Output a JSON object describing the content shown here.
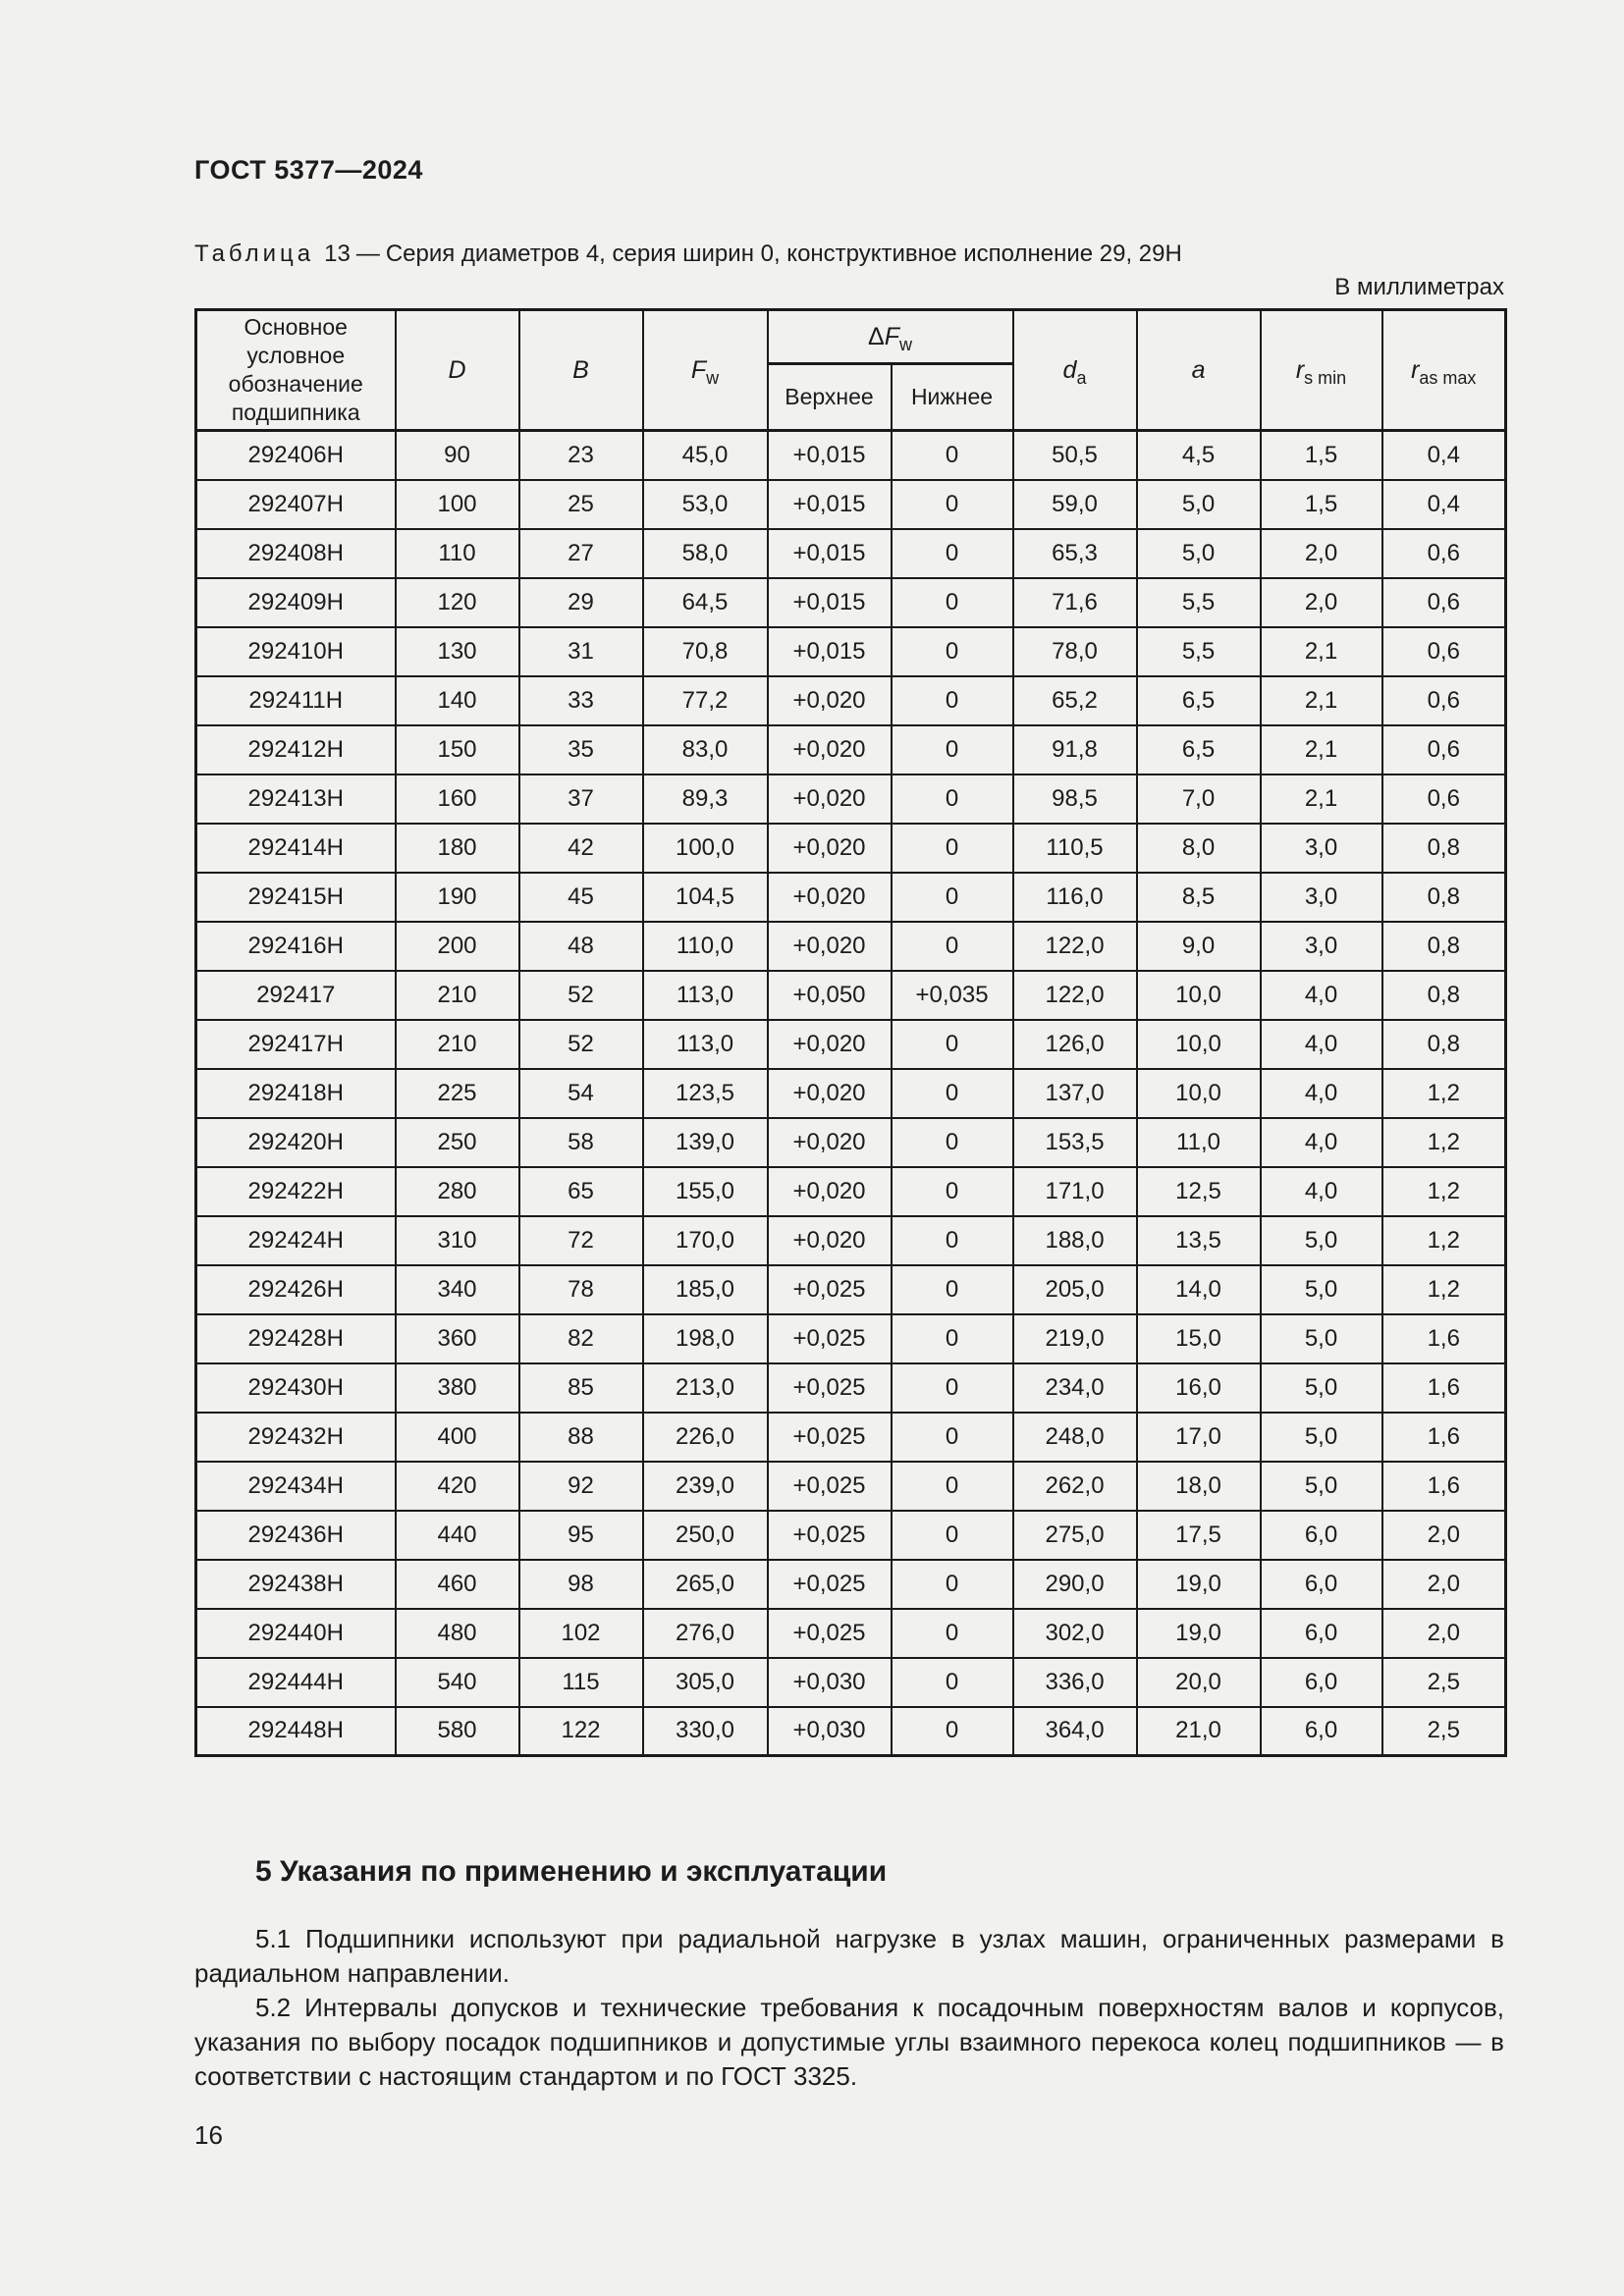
{
  "page": {
    "doc_code": "ГОСТ 5377—2024",
    "units_note": "В миллиметрах",
    "page_number": "16"
  },
  "caption": {
    "label": "Таблица",
    "number": "13",
    "dash": "—",
    "title": "Серия диаметров 4, серия ширин 0, конструктивное исполнение 29, 29Н"
  },
  "table": {
    "header": {
      "designation": "Основное условное обозначение подшипника",
      "d": "D",
      "b": "B",
      "fw_main": "F",
      "fw_sub": "w",
      "dfw_prefix": "Δ",
      "dfw_main": "F",
      "dfw_sub": "w",
      "upper": "Верхнее",
      "lower": "Нижнее",
      "da_main": "d",
      "da_sub": "a",
      "a": "a",
      "rsmin_main": "r",
      "rsmin_sub": "s min",
      "rasmax_main": "r",
      "rasmax_sub": "as max"
    },
    "rows": [
      [
        "292406Н",
        "90",
        "23",
        "45,0",
        "+0,015",
        "0",
        "50,5",
        "4,5",
        "1,5",
        "0,4"
      ],
      [
        "292407Н",
        "100",
        "25",
        "53,0",
        "+0,015",
        "0",
        "59,0",
        "5,0",
        "1,5",
        "0,4"
      ],
      [
        "292408Н",
        "110",
        "27",
        "58,0",
        "+0,015",
        "0",
        "65,3",
        "5,0",
        "2,0",
        "0,6"
      ],
      [
        "292409Н",
        "120",
        "29",
        "64,5",
        "+0,015",
        "0",
        "71,6",
        "5,5",
        "2,0",
        "0,6"
      ],
      [
        "292410Н",
        "130",
        "31",
        "70,8",
        "+0,015",
        "0",
        "78,0",
        "5,5",
        "2,1",
        "0,6"
      ],
      [
        "292411Н",
        "140",
        "33",
        "77,2",
        "+0,020",
        "0",
        "65,2",
        "6,5",
        "2,1",
        "0,6"
      ],
      [
        "292412Н",
        "150",
        "35",
        "83,0",
        "+0,020",
        "0",
        "91,8",
        "6,5",
        "2,1",
        "0,6"
      ],
      [
        "292413Н",
        "160",
        "37",
        "89,3",
        "+0,020",
        "0",
        "98,5",
        "7,0",
        "2,1",
        "0,6"
      ],
      [
        "292414Н",
        "180",
        "42",
        "100,0",
        "+0,020",
        "0",
        "110,5",
        "8,0",
        "3,0",
        "0,8"
      ],
      [
        "292415Н",
        "190",
        "45",
        "104,5",
        "+0,020",
        "0",
        "116,0",
        "8,5",
        "3,0",
        "0,8"
      ],
      [
        "292416Н",
        "200",
        "48",
        "110,0",
        "+0,020",
        "0",
        "122,0",
        "9,0",
        "3,0",
        "0,8"
      ],
      [
        "292417",
        "210",
        "52",
        "113,0",
        "+0,050",
        "+0,035",
        "122,0",
        "10,0",
        "4,0",
        "0,8"
      ],
      [
        "292417Н",
        "210",
        "52",
        "113,0",
        "+0,020",
        "0",
        "126,0",
        "10,0",
        "4,0",
        "0,8"
      ],
      [
        "292418Н",
        "225",
        "54",
        "123,5",
        "+0,020",
        "0",
        "137,0",
        "10,0",
        "4,0",
        "1,2"
      ],
      [
        "292420Н",
        "250",
        "58",
        "139,0",
        "+0,020",
        "0",
        "153,5",
        "11,0",
        "4,0",
        "1,2"
      ],
      [
        "292422Н",
        "280",
        "65",
        "155,0",
        "+0,020",
        "0",
        "171,0",
        "12,5",
        "4,0",
        "1,2"
      ],
      [
        "292424Н",
        "310",
        "72",
        "170,0",
        "+0,020",
        "0",
        "188,0",
        "13,5",
        "5,0",
        "1,2"
      ],
      [
        "292426Н",
        "340",
        "78",
        "185,0",
        "+0,025",
        "0",
        "205,0",
        "14,0",
        "5,0",
        "1,2"
      ],
      [
        "292428Н",
        "360",
        "82",
        "198,0",
        "+0,025",
        "0",
        "219,0",
        "15,0",
        "5,0",
        "1,6"
      ],
      [
        "292430Н",
        "380",
        "85",
        "213,0",
        "+0,025",
        "0",
        "234,0",
        "16,0",
        "5,0",
        "1,6"
      ],
      [
        "292432Н",
        "400",
        "88",
        "226,0",
        "+0,025",
        "0",
        "248,0",
        "17,0",
        "5,0",
        "1,6"
      ],
      [
        "292434Н",
        "420",
        "92",
        "239,0",
        "+0,025",
        "0",
        "262,0",
        "18,0",
        "5,0",
        "1,6"
      ],
      [
        "292436Н",
        "440",
        "95",
        "250,0",
        "+0,025",
        "0",
        "275,0",
        "17,5",
        "6,0",
        "2,0"
      ],
      [
        "292438Н",
        "460",
        "98",
        "265,0",
        "+0,025",
        "0",
        "290,0",
        "19,0",
        "6,0",
        "2,0"
      ],
      [
        "292440Н",
        "480",
        "102",
        "276,0",
        "+0,025",
        "0",
        "302,0",
        "19,0",
        "6,0",
        "2,0"
      ],
      [
        "292444Н",
        "540",
        "115",
        "305,0",
        "+0,030",
        "0",
        "336,0",
        "20,0",
        "6,0",
        "2,5"
      ],
      [
        "292448Н",
        "580",
        "122",
        "330,0",
        "+0,030",
        "0",
        "364,0",
        "21,0",
        "6,0",
        "2,5"
      ]
    ]
  },
  "section": {
    "heading": "5 Указания по применению и эксплуатации",
    "para1": "5.1 Подшипники используют при радиальной нагрузке в узлах машин, ограниченных размерами в радиальном направлении.",
    "para2": "5.2 Интервалы допусков и технические требования к посадочным поверхностям валов и корпусов, указания по выбору посадок подшипников и допустимые углы взаимного перекоса колец подшипников — в соответствии с настоящим стандартом и по ГОСТ 3325."
  }
}
